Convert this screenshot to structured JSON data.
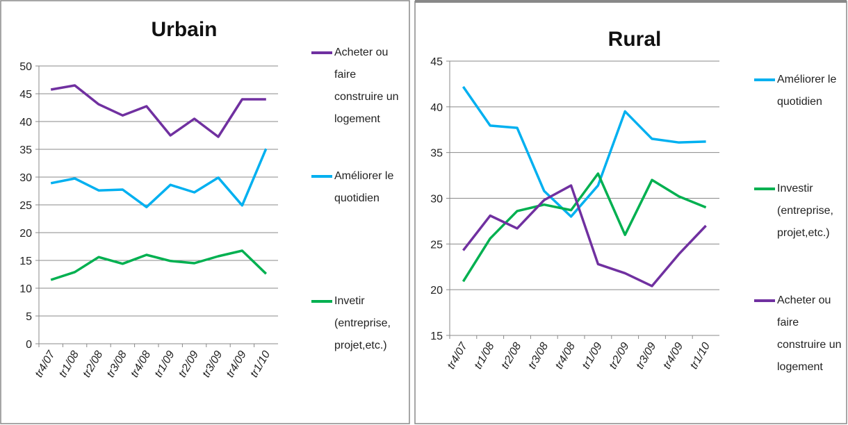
{
  "chart_data": [
    {
      "type": "line",
      "title": "Urbain",
      "categories": [
        "tr4/07",
        "tr1/08",
        "tr2/08",
        "tr3/08",
        "tr4/08",
        "tr1/09",
        "tr2/09",
        "tr3/09",
        "tr4/09",
        "tr1/10"
      ],
      "series": [
        {
          "name": "Acheter ou faire construire un logement",
          "color": "#7030a0",
          "values": [
            45.75,
            46.5,
            43.1,
            41.1,
            42.75,
            37.5,
            40.5,
            37.25,
            44,
            44
          ]
        },
        {
          "name": "Améliorer le quotidien",
          "color": "#00b0f0",
          "values": [
            28.9,
            29.75,
            27.6,
            27.75,
            24.6,
            28.6,
            27.25,
            29.9,
            24.9,
            35.1
          ]
        },
        {
          "name": "Invetir (entreprise, projet,etc.)",
          "color": "#00b050",
          "values": [
            11.5,
            12.9,
            15.6,
            14.4,
            16,
            14.9,
            14.5,
            15.75,
            16.75,
            12.6
          ]
        }
      ],
      "ylim": [
        0,
        50
      ],
      "yticks": [
        0,
        5,
        10,
        15,
        20,
        25,
        30,
        35,
        40,
        45,
        50
      ],
      "grid": true
    },
    {
      "type": "line",
      "title": "Rural",
      "categories": [
        "tr4/07",
        "tr1/08",
        "tr2/08",
        "tr3/08",
        "tr4/08",
        "tr1/09",
        "tr2/09",
        "tr3/09",
        "tr4/09",
        "tr1/10"
      ],
      "series": [
        {
          "name": "Améliorer le quotidien",
          "color": "#00b0f0",
          "values": [
            42.2,
            37.95,
            37.7,
            30.8,
            28,
            31.4,
            39.5,
            36.5,
            36.1,
            36.2
          ]
        },
        {
          "name": "Investir (entreprise, projet,etc.)",
          "color": "#00b050",
          "values": [
            20.9,
            25.6,
            28.6,
            29.3,
            28.7,
            32.7,
            26,
            32,
            30.2,
            29
          ]
        },
        {
          "name": "Acheter ou faire construire un logement",
          "color": "#7030a0",
          "values": [
            24.3,
            28.1,
            26.7,
            29.8,
            31.4,
            22.8,
            21.8,
            20.4,
            23.9,
            27
          ]
        }
      ],
      "ylim": [
        15,
        45
      ],
      "yticks": [
        15,
        20,
        25,
        30,
        35,
        40,
        45
      ],
      "grid": true
    }
  ]
}
